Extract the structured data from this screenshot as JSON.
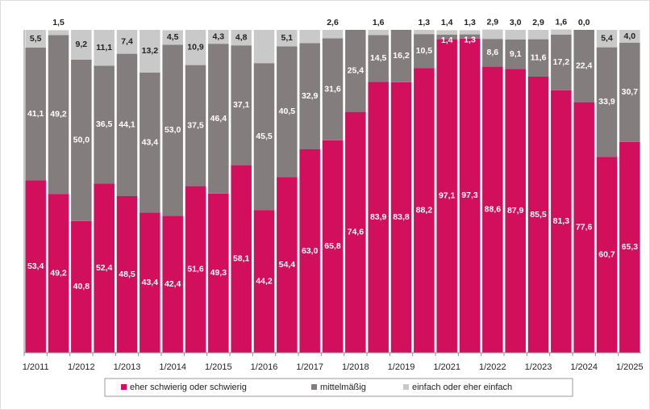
{
  "chart_data": {
    "type": "stacked_bar",
    "categories": [
      "1/2011",
      null,
      "1/2012",
      null,
      "1/2013",
      null,
      "1/2014",
      null,
      "1/2015",
      null,
      "1/2016",
      null,
      "1/2017",
      null,
      "1/2018",
      null,
      "1/2019",
      null,
      "1/2021",
      null,
      "1/2022",
      null,
      "1/2023",
      null,
      "1/2024",
      null,
      "1/2025"
    ],
    "ylim": [
      0,
      100
    ],
    "legend": "bottom",
    "series": [
      {
        "name": "eher schwierig oder schwierig",
        "color": "#d10f5c",
        "label_color": "#ffffff",
        "values": [
          53.4,
          49.2,
          40.8,
          52.4,
          48.5,
          43.4,
          42.4,
          51.6,
          49.3,
          58.1,
          44.2,
          54.4,
          63.0,
          65.8,
          74.6,
          83.9,
          83.8,
          88.2,
          97.1,
          97.3,
          88.6,
          87.9,
          85.5,
          81.3,
          77.6,
          60.7,
          65.3
        ],
        "value_labels": [
          "53,4",
          "49,2",
          "40,8",
          "52,4",
          "48,5",
          "43,4",
          "42,4",
          "51,6",
          "49,3",
          "58,1",
          "44,2",
          "54,4",
          "63,0",
          "65,8",
          "74,6",
          "83,9",
          "83,8",
          "88,2",
          "97,1",
          "97,3",
          "88,6",
          "87,9",
          "85,5",
          "81,3",
          "77,6",
          "60,7",
          "65,3"
        ]
      },
      {
        "name": "mittelmäßig",
        "color": "#837d7d",
        "label_color": "#ffffff",
        "values": [
          41.1,
          49.2,
          50.0,
          36.5,
          44.1,
          43.4,
          53.0,
          37.5,
          46.4,
          37.1,
          45.5,
          40.5,
          32.9,
          31.6,
          25.4,
          14.5,
          16.2,
          10.5,
          1.4,
          1.3,
          8.6,
          9.1,
          11.6,
          17.2,
          22.4,
          33.9,
          30.7
        ],
        "value_labels": [
          "41,1",
          "49,2",
          "50,0",
          "36,5",
          "44,1",
          "43,4",
          "53,0",
          "37,5",
          "46,4",
          "37,1",
          "45,5",
          "40,5",
          "32,9",
          "31,6",
          "25,4",
          "14,5",
          "16,2",
          "10,5",
          "1,4",
          "1,3",
          "8,6",
          "9,1",
          "11,6",
          "17,2",
          "22,4",
          "33,9",
          "30,7"
        ]
      },
      {
        "name": "einfach oder eher einfach",
        "color": "#c9c9c9",
        "label_color": "#222222",
        "values": [
          5.5,
          1.5,
          9.2,
          11.1,
          7.4,
          13.2,
          4.5,
          10.9,
          4.3,
          4.8,
          10.3,
          5.1,
          4.1,
          2.6,
          0.0,
          1.6,
          0.0,
          1.3,
          1.4,
          1.3,
          2.9,
          3.0,
          2.9,
          1.6,
          0.0,
          5.4,
          4.0
        ],
        "value_labels": [
          "5,5",
          "1,5",
          "9,2",
          "11,1",
          "7,4",
          "13,2",
          "4,5",
          "10,9",
          "4,3",
          "4,8",
          null,
          "5,1",
          null,
          "2,6",
          null,
          "1,6",
          null,
          "1,3",
          "1,4",
          "1,3",
          "2,9",
          "3,0",
          "2,9",
          "1,6",
          "0,0",
          "5,4",
          "4,0"
        ]
      }
    ]
  }
}
